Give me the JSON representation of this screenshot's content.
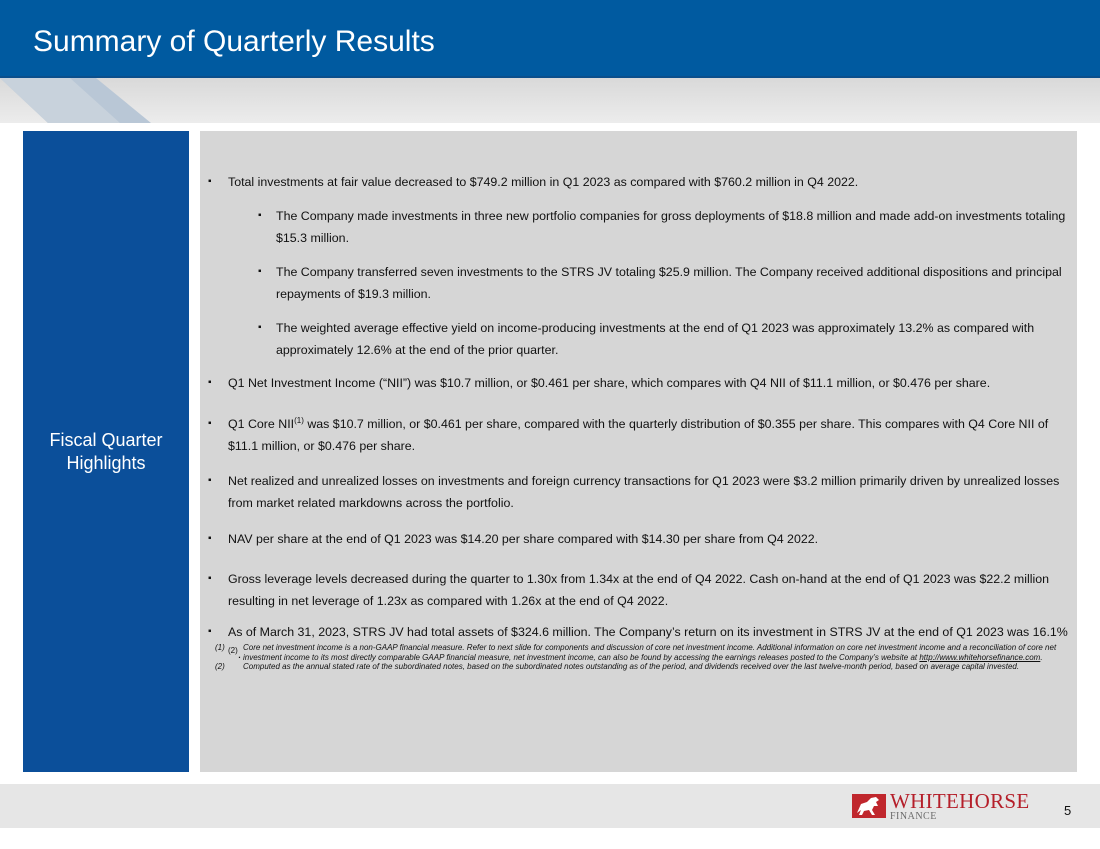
{
  "header": {
    "title": "Summary of Quarterly Results"
  },
  "sidebar": {
    "label": "Fiscal Quarter Highlights"
  },
  "bullets": [
    {
      "text": "Total investments at fair value decreased to $749.2 million in Q1 2023 as compared with $760.2 million in Q4 2022."
    },
    {
      "text": "The Company made investments in three new portfolio companies for gross deployments of $18.8 million and made add-on investments totaling $15.3 million."
    },
    {
      "text": "The Company transferred seven investments to the STRS JV totaling $25.9 million. The Company received additional dispositions and principal repayments of $19.3 million."
    },
    {
      "text": "The weighted average effective yield on income-producing investments at the end of Q1 2023 was approximately 13.2% as compared with approximately 12.6% at the end of the prior quarter."
    },
    {
      "text": "Q1 Net Investment Income (“NII”) was $10.7 million, or $0.461 per share, which compares with Q4 NII of $11.1 million, or $0.476 per share."
    },
    {
      "prefix": "Q1 Core NII",
      "sup": "(1)",
      "text": " was $10.7 million, or $0.461 per share, compared with the quarterly distribution of $0.355 per share. This compares with Q4 Core NII of $11.1 million, or $0.476 per share."
    },
    {
      "text": "Net realized and unrealized losses on investments and foreign currency transactions for Q1 2023 were $3.2 million primarily driven by unrealized losses from market related markdowns across the portfolio."
    },
    {
      "text": "NAV per share at the end of Q1 2023 was $14.20 per share compared with $14.30 per share from Q4 2022."
    },
    {
      "text": "Gross leverage levels decreased during the quarter to 1.30x from 1.34x at the end of Q4 2022. Cash on-hand at the end of Q1 2023 was $22.2 million resulting in net leverage of 1.23x as compared with 1.26x at the end of Q4 2022."
    },
    {
      "text": "As of March 31, 2023, STRS JV had total assets of $324.6 million. The Company’s return on its investment in STRS JV at the end of Q1 2023 was 16.1%",
      "sup": "(2)",
      "suffix": "."
    }
  ],
  "footnotes": [
    {
      "num": "(1)",
      "text": "Core net investment income is a non-GAAP financial measure. Refer to next slide for components and discussion of core net investment income. Additional information on core net investment income and a reconciliation of core net investment income to its most directly comparable GAAP financial measure, net investment income, can also be found by accessing the earnings releases posted to the Company’s website at ",
      "link": "http://www.whitehorsefinance.com",
      "suffix": "."
    },
    {
      "num": "(2)",
      "text": "Computed as the annual stated rate of the subordinated notes, based on the subordinated notes outstanding as of the period, and dividends received over the last twelve-month period, based on average capital invested."
    }
  ],
  "footer": {
    "logo_word": "WHITEHORSE",
    "logo_sub": "FINANCE",
    "page_number": "5"
  },
  "colors": {
    "header_blue": "#005aa0",
    "sidebar_blue": "#0b4f9a",
    "content_gray": "#d6d6d6",
    "logo_red": "#b51f2a"
  },
  "icons": {
    "logo": "horse-logo-icon",
    "bullet": "square-bullet-icon"
  }
}
